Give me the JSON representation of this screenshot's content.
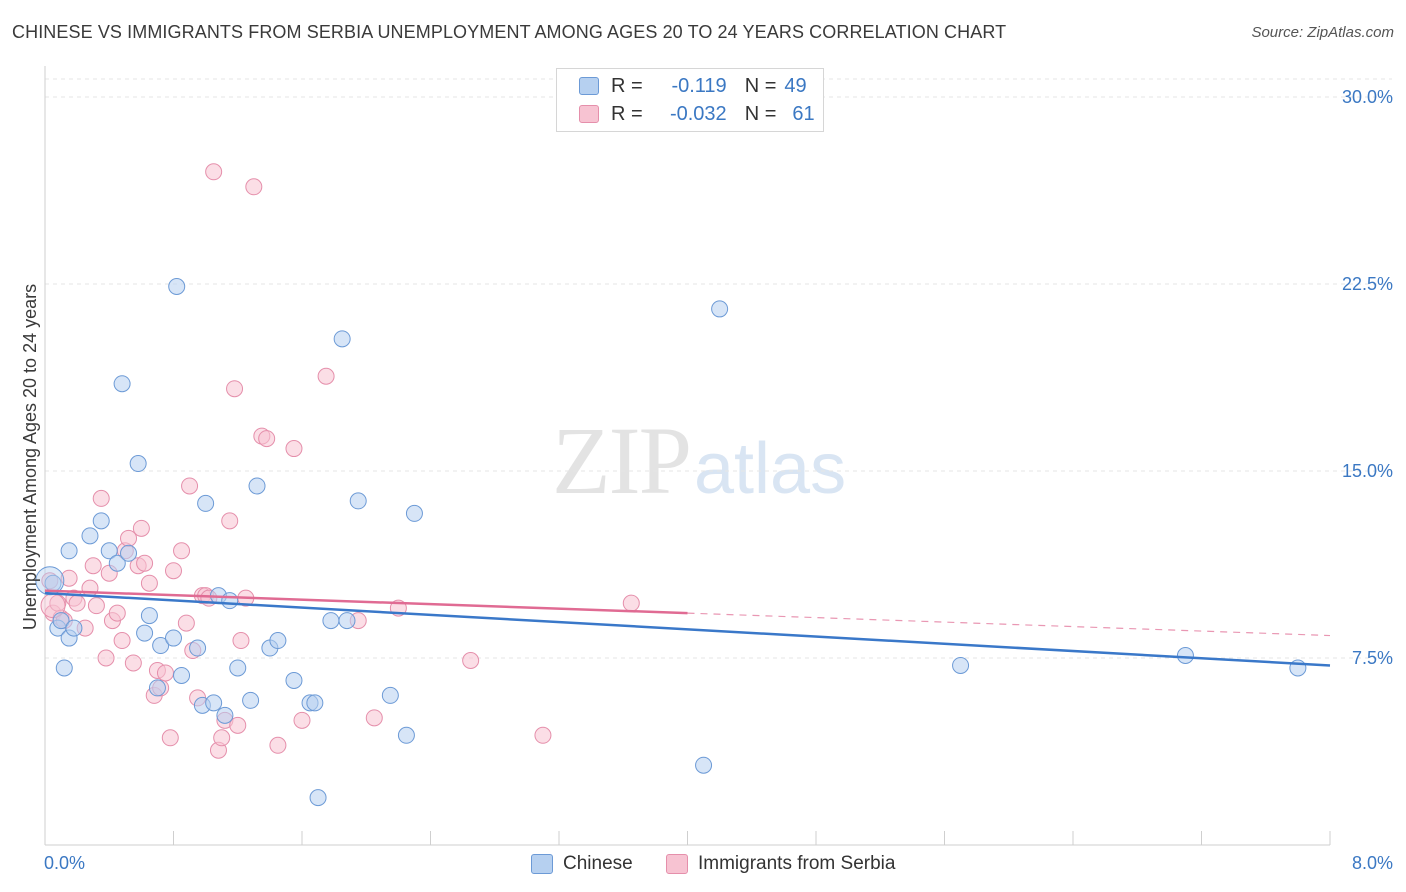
{
  "title": "CHINESE VS IMMIGRANTS FROM SERBIA UNEMPLOYMENT AMONG AGES 20 TO 24 YEARS CORRELATION CHART",
  "source": "Source: ZipAtlas.com",
  "watermark": {
    "zip": "ZIP",
    "atlas": "atlas"
  },
  "legend": {
    "r_label": "R =",
    "n_label": "N =",
    "rows": [
      {
        "r": "-0.119",
        "n": "49"
      },
      {
        "r": "-0.032",
        "n": "61"
      }
    ]
  },
  "bottom_legend": [
    "Chinese",
    "Immigrants from Serbia"
  ],
  "colors": {
    "chinese_fill": "#b6d0f0",
    "chinese_stroke": "#6c9ad6",
    "chinese_line": "#3a78c9",
    "serbia_fill": "#f7c3d2",
    "serbia_stroke": "#e58fab",
    "serbia_line": "#e06b93",
    "tick_text": "#3b78c3",
    "grid": "#e6e6e6"
  },
  "chart_data": {
    "type": "scatter",
    "title": "CHINESE VS IMMIGRANTS FROM SERBIA UNEMPLOYMENT AMONG AGES 20 TO 24 YEARS CORRELATION CHART",
    "xlabel": "",
    "ylabel": "Unemployment Among Ages 20 to 24 years",
    "xlim": [
      0,
      8.0
    ],
    "ylim": [
      0,
      30.0
    ],
    "x_tick_labels": [
      "0.0%",
      "8.0%"
    ],
    "y_ticks": [
      7.5,
      15.0,
      22.5,
      30.0
    ],
    "y_tick_labels": [
      "7.5%",
      "15.0%",
      "22.5%",
      "30.0%"
    ],
    "grid": true,
    "legend_position": "top-center",
    "series": [
      {
        "name": "Chinese",
        "r": -0.119,
        "n": 49,
        "trend": {
          "x": [
            0.0,
            8.0
          ],
          "y": [
            10.1,
            7.2
          ],
          "dashed_from": null
        },
        "points": [
          [
            0.05,
            10.5
          ],
          [
            0.08,
            8.7
          ],
          [
            0.1,
            9.0
          ],
          [
            0.12,
            7.1
          ],
          [
            0.15,
            8.3
          ],
          [
            0.18,
            8.7
          ],
          [
            0.15,
            11.8
          ],
          [
            0.28,
            12.4
          ],
          [
            0.35,
            13.0
          ],
          [
            0.4,
            11.8
          ],
          [
            0.45,
            11.3
          ],
          [
            0.52,
            11.7
          ],
          [
            0.48,
            18.5
          ],
          [
            0.58,
            15.3
          ],
          [
            0.62,
            8.5
          ],
          [
            0.65,
            9.2
          ],
          [
            0.7,
            6.3
          ],
          [
            0.72,
            8.0
          ],
          [
            0.8,
            8.3
          ],
          [
            0.85,
            6.8
          ],
          [
            0.82,
            22.4
          ],
          [
            0.95,
            7.9
          ],
          [
            0.98,
            5.6
          ],
          [
            1.0,
            13.7
          ],
          [
            1.05,
            5.7
          ],
          [
            1.08,
            10.0
          ],
          [
            1.12,
            5.2
          ],
          [
            1.15,
            9.8
          ],
          [
            1.2,
            7.1
          ],
          [
            1.28,
            5.8
          ],
          [
            1.32,
            14.4
          ],
          [
            1.4,
            7.9
          ],
          [
            1.45,
            8.2
          ],
          [
            1.55,
            6.6
          ],
          [
            1.65,
            5.7
          ],
          [
            1.68,
            5.7
          ],
          [
            1.7,
            1.9
          ],
          [
            1.78,
            9.0
          ],
          [
            1.85,
            20.3
          ],
          [
            1.88,
            9.0
          ],
          [
            1.95,
            13.8
          ],
          [
            2.15,
            6.0
          ],
          [
            2.25,
            4.4
          ],
          [
            2.3,
            13.3
          ],
          [
            4.1,
            3.2
          ],
          [
            4.2,
            21.5
          ],
          [
            5.7,
            7.2
          ],
          [
            7.1,
            7.6
          ],
          [
            7.8,
            7.1
          ]
        ]
      },
      {
        "name": "Immigrants from Serbia",
        "r": -0.032,
        "n": 61,
        "trend": {
          "x": [
            0.0,
            8.0
          ],
          "y": [
            10.2,
            8.4
          ],
          "dashed_from": 4.0
        },
        "points": [
          [
            0.03,
            10.6
          ],
          [
            0.05,
            9.3
          ],
          [
            0.08,
            9.7
          ],
          [
            0.1,
            9.1
          ],
          [
            0.12,
            9.0
          ],
          [
            0.15,
            10.7
          ],
          [
            0.18,
            9.9
          ],
          [
            0.2,
            9.7
          ],
          [
            0.25,
            8.7
          ],
          [
            0.28,
            10.3
          ],
          [
            0.3,
            11.2
          ],
          [
            0.32,
            9.6
          ],
          [
            0.35,
            13.9
          ],
          [
            0.38,
            7.5
          ],
          [
            0.4,
            10.9
          ],
          [
            0.42,
            9.0
          ],
          [
            0.45,
            9.3
          ],
          [
            0.48,
            8.2
          ],
          [
            0.5,
            11.8
          ],
          [
            0.52,
            12.3
          ],
          [
            0.55,
            7.3
          ],
          [
            0.58,
            11.2
          ],
          [
            0.6,
            12.7
          ],
          [
            0.62,
            11.3
          ],
          [
            0.65,
            10.5
          ],
          [
            0.68,
            6.0
          ],
          [
            0.7,
            7.0
          ],
          [
            0.72,
            6.3
          ],
          [
            0.75,
            6.9
          ],
          [
            0.78,
            4.3
          ],
          [
            0.8,
            11.0
          ],
          [
            0.85,
            11.8
          ],
          [
            0.88,
            8.9
          ],
          [
            0.9,
            14.4
          ],
          [
            0.92,
            7.8
          ],
          [
            0.95,
            5.9
          ],
          [
            0.98,
            10.0
          ],
          [
            1.0,
            10.0
          ],
          [
            1.02,
            9.9
          ],
          [
            1.05,
            27.0
          ],
          [
            1.08,
            3.8
          ],
          [
            1.1,
            4.3
          ],
          [
            1.12,
            5.0
          ],
          [
            1.15,
            13.0
          ],
          [
            1.18,
            18.3
          ],
          [
            1.2,
            4.8
          ],
          [
            1.22,
            8.2
          ],
          [
            1.25,
            9.9
          ],
          [
            1.3,
            26.4
          ],
          [
            1.35,
            16.4
          ],
          [
            1.38,
            16.3
          ],
          [
            1.45,
            4.0
          ],
          [
            1.55,
            15.9
          ],
          [
            1.6,
            5.0
          ],
          [
            1.75,
            18.8
          ],
          [
            1.95,
            9.0
          ],
          [
            2.05,
            5.1
          ],
          [
            2.2,
            9.5
          ],
          [
            2.65,
            7.4
          ],
          [
            3.1,
            4.4
          ],
          [
            3.65,
            9.7
          ]
        ]
      }
    ]
  }
}
